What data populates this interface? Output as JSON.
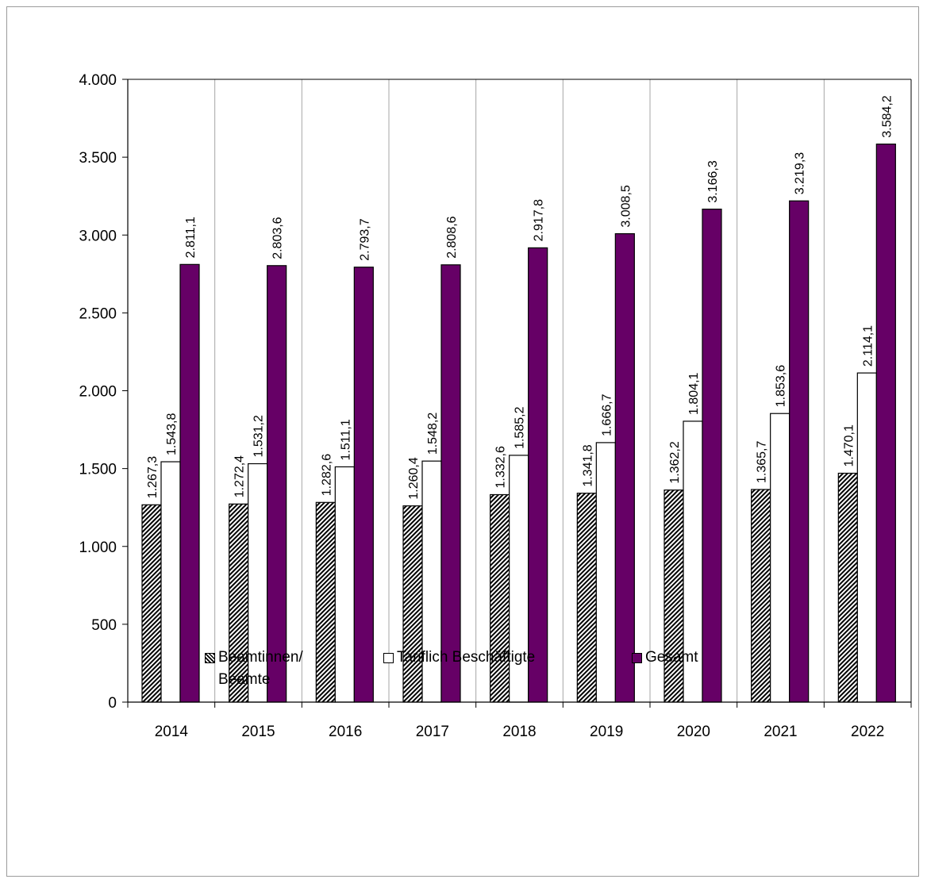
{
  "chart_data": {
    "type": "bar",
    "categories": [
      "2014",
      "2015",
      "2016",
      "2017",
      "2018",
      "2019",
      "2020",
      "2021",
      "2022"
    ],
    "series": [
      {
        "name": "Beamtinnen/ Beamte",
        "values": [
          1267.3,
          1272.4,
          1282.6,
          1260.4,
          1332.6,
          1341.8,
          1362.2,
          1365.7,
          1470.1
        ],
        "labels": [
          "1.267,3",
          "1.272,4",
          "1.282,6",
          "1.260,4",
          "1.332,6",
          "1.341,8",
          "1.362,2",
          "1.365,7",
          "1.470,1"
        ],
        "fill": "hatched"
      },
      {
        "name": "Tariflich Beschäftigte",
        "values": [
          1543.8,
          1531.2,
          1511.1,
          1548.2,
          1585.2,
          1666.7,
          1804.1,
          1853.6,
          2114.1
        ],
        "labels": [
          "1.543,8",
          "1.531,2",
          "1.511,1",
          "1.548,2",
          "1.585,2",
          "1.666,7",
          "1.804,1",
          "1.853,6",
          "2.114,1"
        ],
        "color": "#ffffff"
      },
      {
        "name": "Gesamt",
        "values": [
          2811.1,
          2803.6,
          2793.7,
          2808.6,
          2917.8,
          3008.5,
          3166.3,
          3219.3,
          3584.2
        ],
        "labels": [
          "2.811,1",
          "2.803,6",
          "2.793,7",
          "2.808,6",
          "2.917,8",
          "3.008,5",
          "3.166,3",
          "3.219,3",
          "3.584,2"
        ],
        "color": "#660066"
      }
    ],
    "yticks": [
      0,
      500,
      1000,
      1500,
      2000,
      2500,
      3000,
      3500,
      4000
    ],
    "ytick_labels": [
      "0",
      "500",
      "1.000",
      "1.500",
      "2.000",
      "2.500",
      "3.000",
      "3.500",
      "4.000"
    ],
    "ylim": [
      0,
      4000
    ],
    "grid": "vertical category separators",
    "legend_position": "bottom",
    "title": "",
    "xlabel": "",
    "ylabel": ""
  },
  "legend": {
    "beamte_line1": "Beamtinnen/",
    "beamte_line2": "Beamte",
    "tarif": "Tariflich Beschäftigte",
    "gesamt": "Gesamt"
  }
}
